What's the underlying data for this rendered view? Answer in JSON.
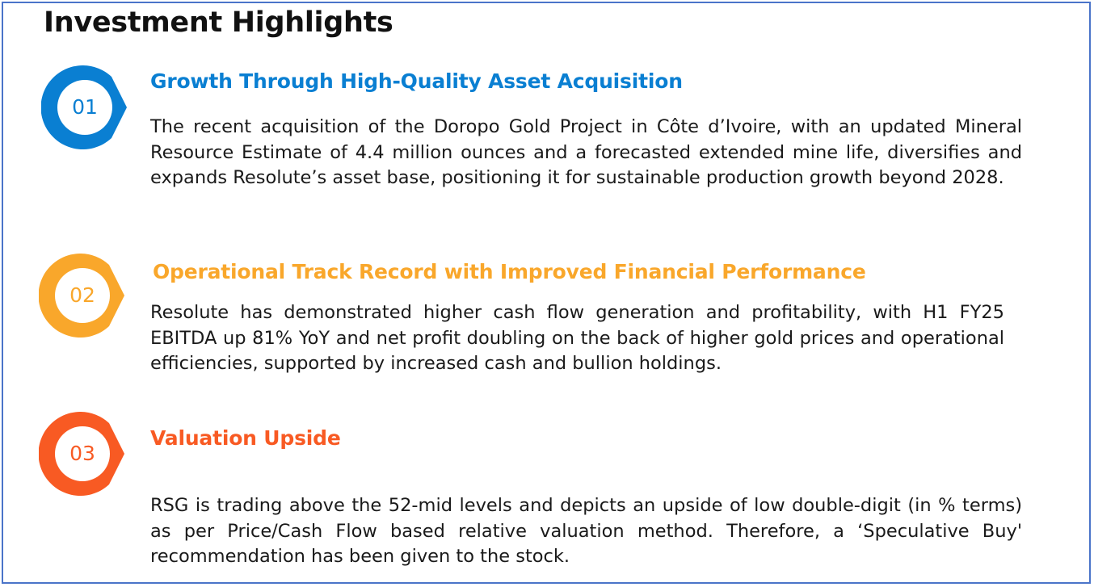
{
  "title": "Investment Highlights",
  "colors": {
    "item1": "#0a7fd2",
    "item2": "#f9a72b",
    "item3": "#f85a23",
    "border": "#4a74c9"
  },
  "items": [
    {
      "number": "01",
      "heading": "Growth Through High-Quality Asset Acquisition",
      "body": "The recent acquisition of the Doropo Gold Project in Côte d’Ivoire, with an updated Mineral Resource Estimate of 4.4 million ounces and a forecasted extended mine life, diversifies and expands Resolute’s asset base, positioning it for sustainable production growth beyond 2028."
    },
    {
      "number": "02",
      "heading": "Operational Track Record with Improved Financial Performance",
      "body": "Resolute has demonstrated higher cash flow generation and profitability, with H1 FY25 EBITDA up 81% YoY and net profit doubling on the back of higher gold prices and operational efficiencies, supported by increased cash and bullion holdings."
    },
    {
      "number": "03",
      "heading": "Valuation Upside",
      "body": "RSG is trading above the 52-mid levels and depicts an upside of low double-digit (in % terms) as per Price/Cash Flow based relative valuation method. Therefore, a ‘Speculative Buy' recommendation has been given to the stock."
    }
  ]
}
